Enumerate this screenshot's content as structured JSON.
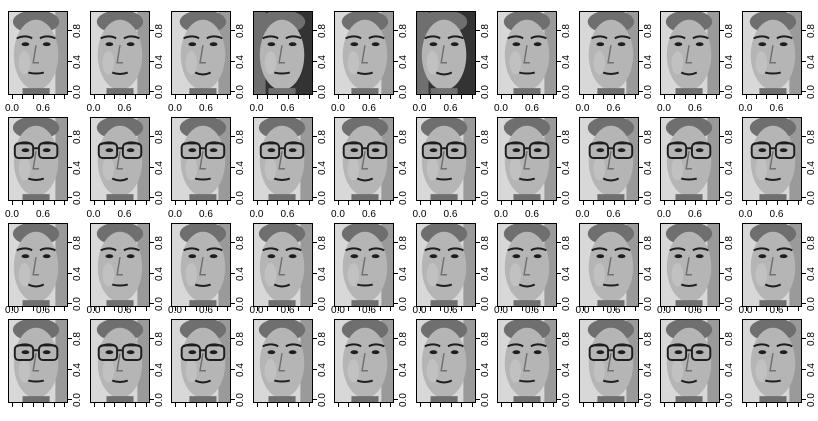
{
  "grid": {
    "rows": 4,
    "columns": 10
  },
  "axis_labels": {
    "y_labels": [
      "0.0",
      "0.4",
      "0.8"
    ],
    "x_labels": [
      "0.0",
      "0.6"
    ]
  },
  "face_tones": {
    "background_light": "#d8d8d8",
    "background_dark": "#333333",
    "skin": "#b5b5b5",
    "shadow": "#6f6f6f",
    "feature": "#1e1e1e"
  },
  "rows": [
    {
      "subject": "face-subject-1",
      "glasses": false,
      "faces": 10,
      "x_axis_labels": false
    },
    {
      "subject": "face-subject-2",
      "glasses": true,
      "faces": 10,
      "x_axis_labels": true
    },
    {
      "subject": "face-subject-3",
      "glasses": false,
      "faces": 10,
      "x_axis_labels": true
    },
    {
      "subject": "face-subject-4",
      "glasses_pattern": [
        true,
        true,
        true,
        false,
        false,
        false,
        false,
        true,
        true,
        false
      ],
      "faces": 10,
      "x_axis_labels": true
    }
  ]
}
